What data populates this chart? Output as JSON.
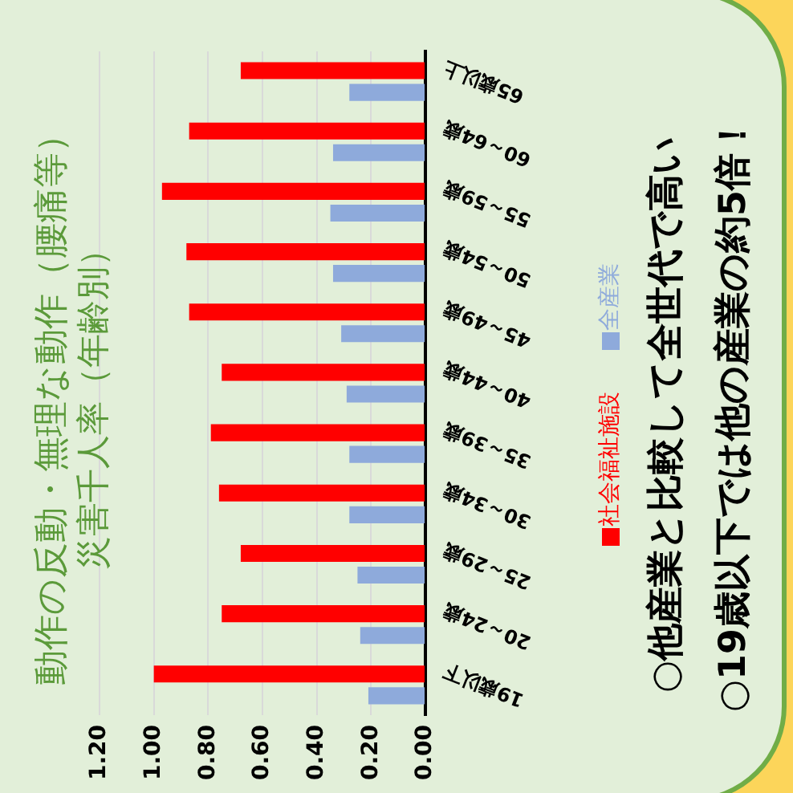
{
  "chart_data": {
    "type": "bar",
    "orientation": "horizontal",
    "title": "動作の反動・無理な動作（腰痛等）",
    "subtitle": "災害千人率（年齢別）",
    "categories": [
      "65歳以上",
      "60～64歳",
      "55～59歳",
      "50～54歳",
      "45～49歳",
      "40～44歳",
      "35～39歳",
      "30～34歳",
      "25～29歳",
      "20～24歳",
      "19歳以下"
    ],
    "series": [
      {
        "name": "社会福祉施設",
        "color": "#ff0000",
        "values": [
          0.68,
          0.87,
          0.97,
          0.88,
          0.87,
          0.75,
          0.79,
          0.76,
          0.68,
          0.75,
          1.0
        ]
      },
      {
        "name": "全産業",
        "color": "#8eaadb",
        "values": [
          0.28,
          0.34,
          0.35,
          0.34,
          0.31,
          0.29,
          0.28,
          0.28,
          0.25,
          0.24,
          0.21
        ]
      }
    ],
    "xlim": [
      1.2,
      0
    ],
    "xticks": [
      {
        "value": 0,
        "label": "0.00"
      },
      {
        "value": 0.2,
        "label": "0.20"
      },
      {
        "value": 0.4,
        "label": "0.40"
      },
      {
        "value": 0.6,
        "label": "0.60"
      },
      {
        "value": 0.8,
        "label": "0.80"
      },
      {
        "value": 1,
        "label": "1.00"
      },
      {
        "value": 1.2,
        "label": "1.20"
      }
    ],
    "grid": "x",
    "legend": "right",
    "annotations": [
      "○他産業と比較して全世代で高い",
      "○19歳以下では他の産業の約5倍！"
    ]
  }
}
